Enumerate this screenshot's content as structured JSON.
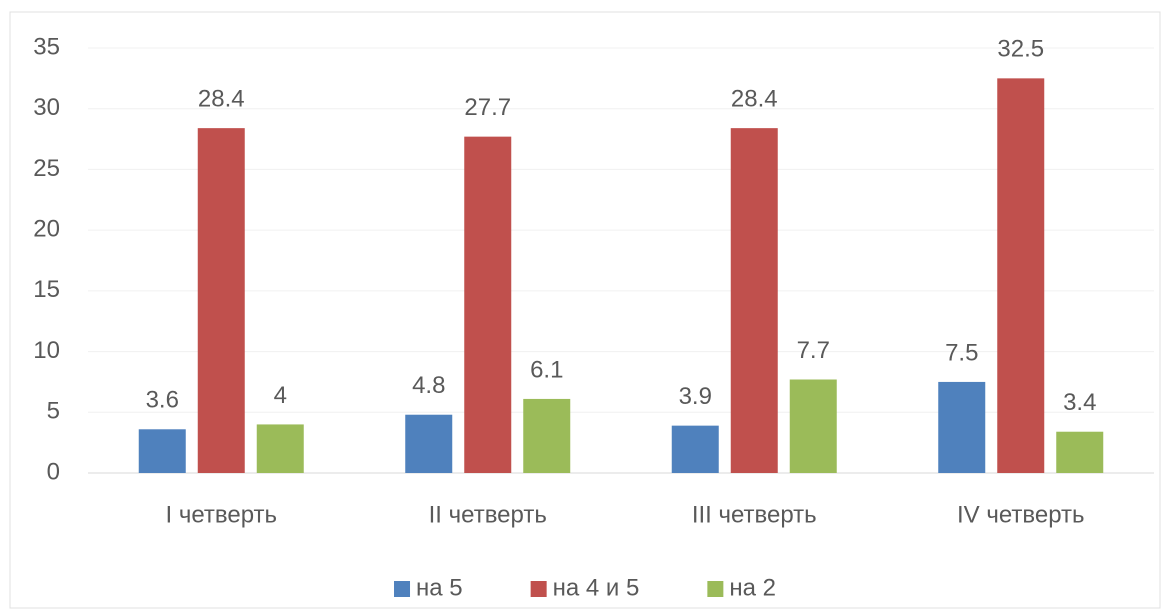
{
  "chart_data": {
    "type": "bar",
    "categories": [
      "I четверть",
      "II четверть",
      "III четверть",
      "IV четверть"
    ],
    "series": [
      {
        "name": "на 5",
        "color": "#4f81bd",
        "values": [
          3.6,
          4.8,
          3.9,
          7.5
        ]
      },
      {
        "name": "на 4 и 5",
        "color": "#c0504d",
        "values": [
          28.4,
          27.7,
          28.4,
          32.5
        ]
      },
      {
        "name": "на 2",
        "color": "#9bbb59",
        "values": [
          4,
          6.1,
          7.7,
          3.4
        ]
      }
    ],
    "ylim": [
      0,
      35
    ],
    "yticks": [
      0,
      5,
      10,
      15,
      20,
      25,
      30,
      35
    ],
    "grid": true,
    "legend": "bottom"
  }
}
